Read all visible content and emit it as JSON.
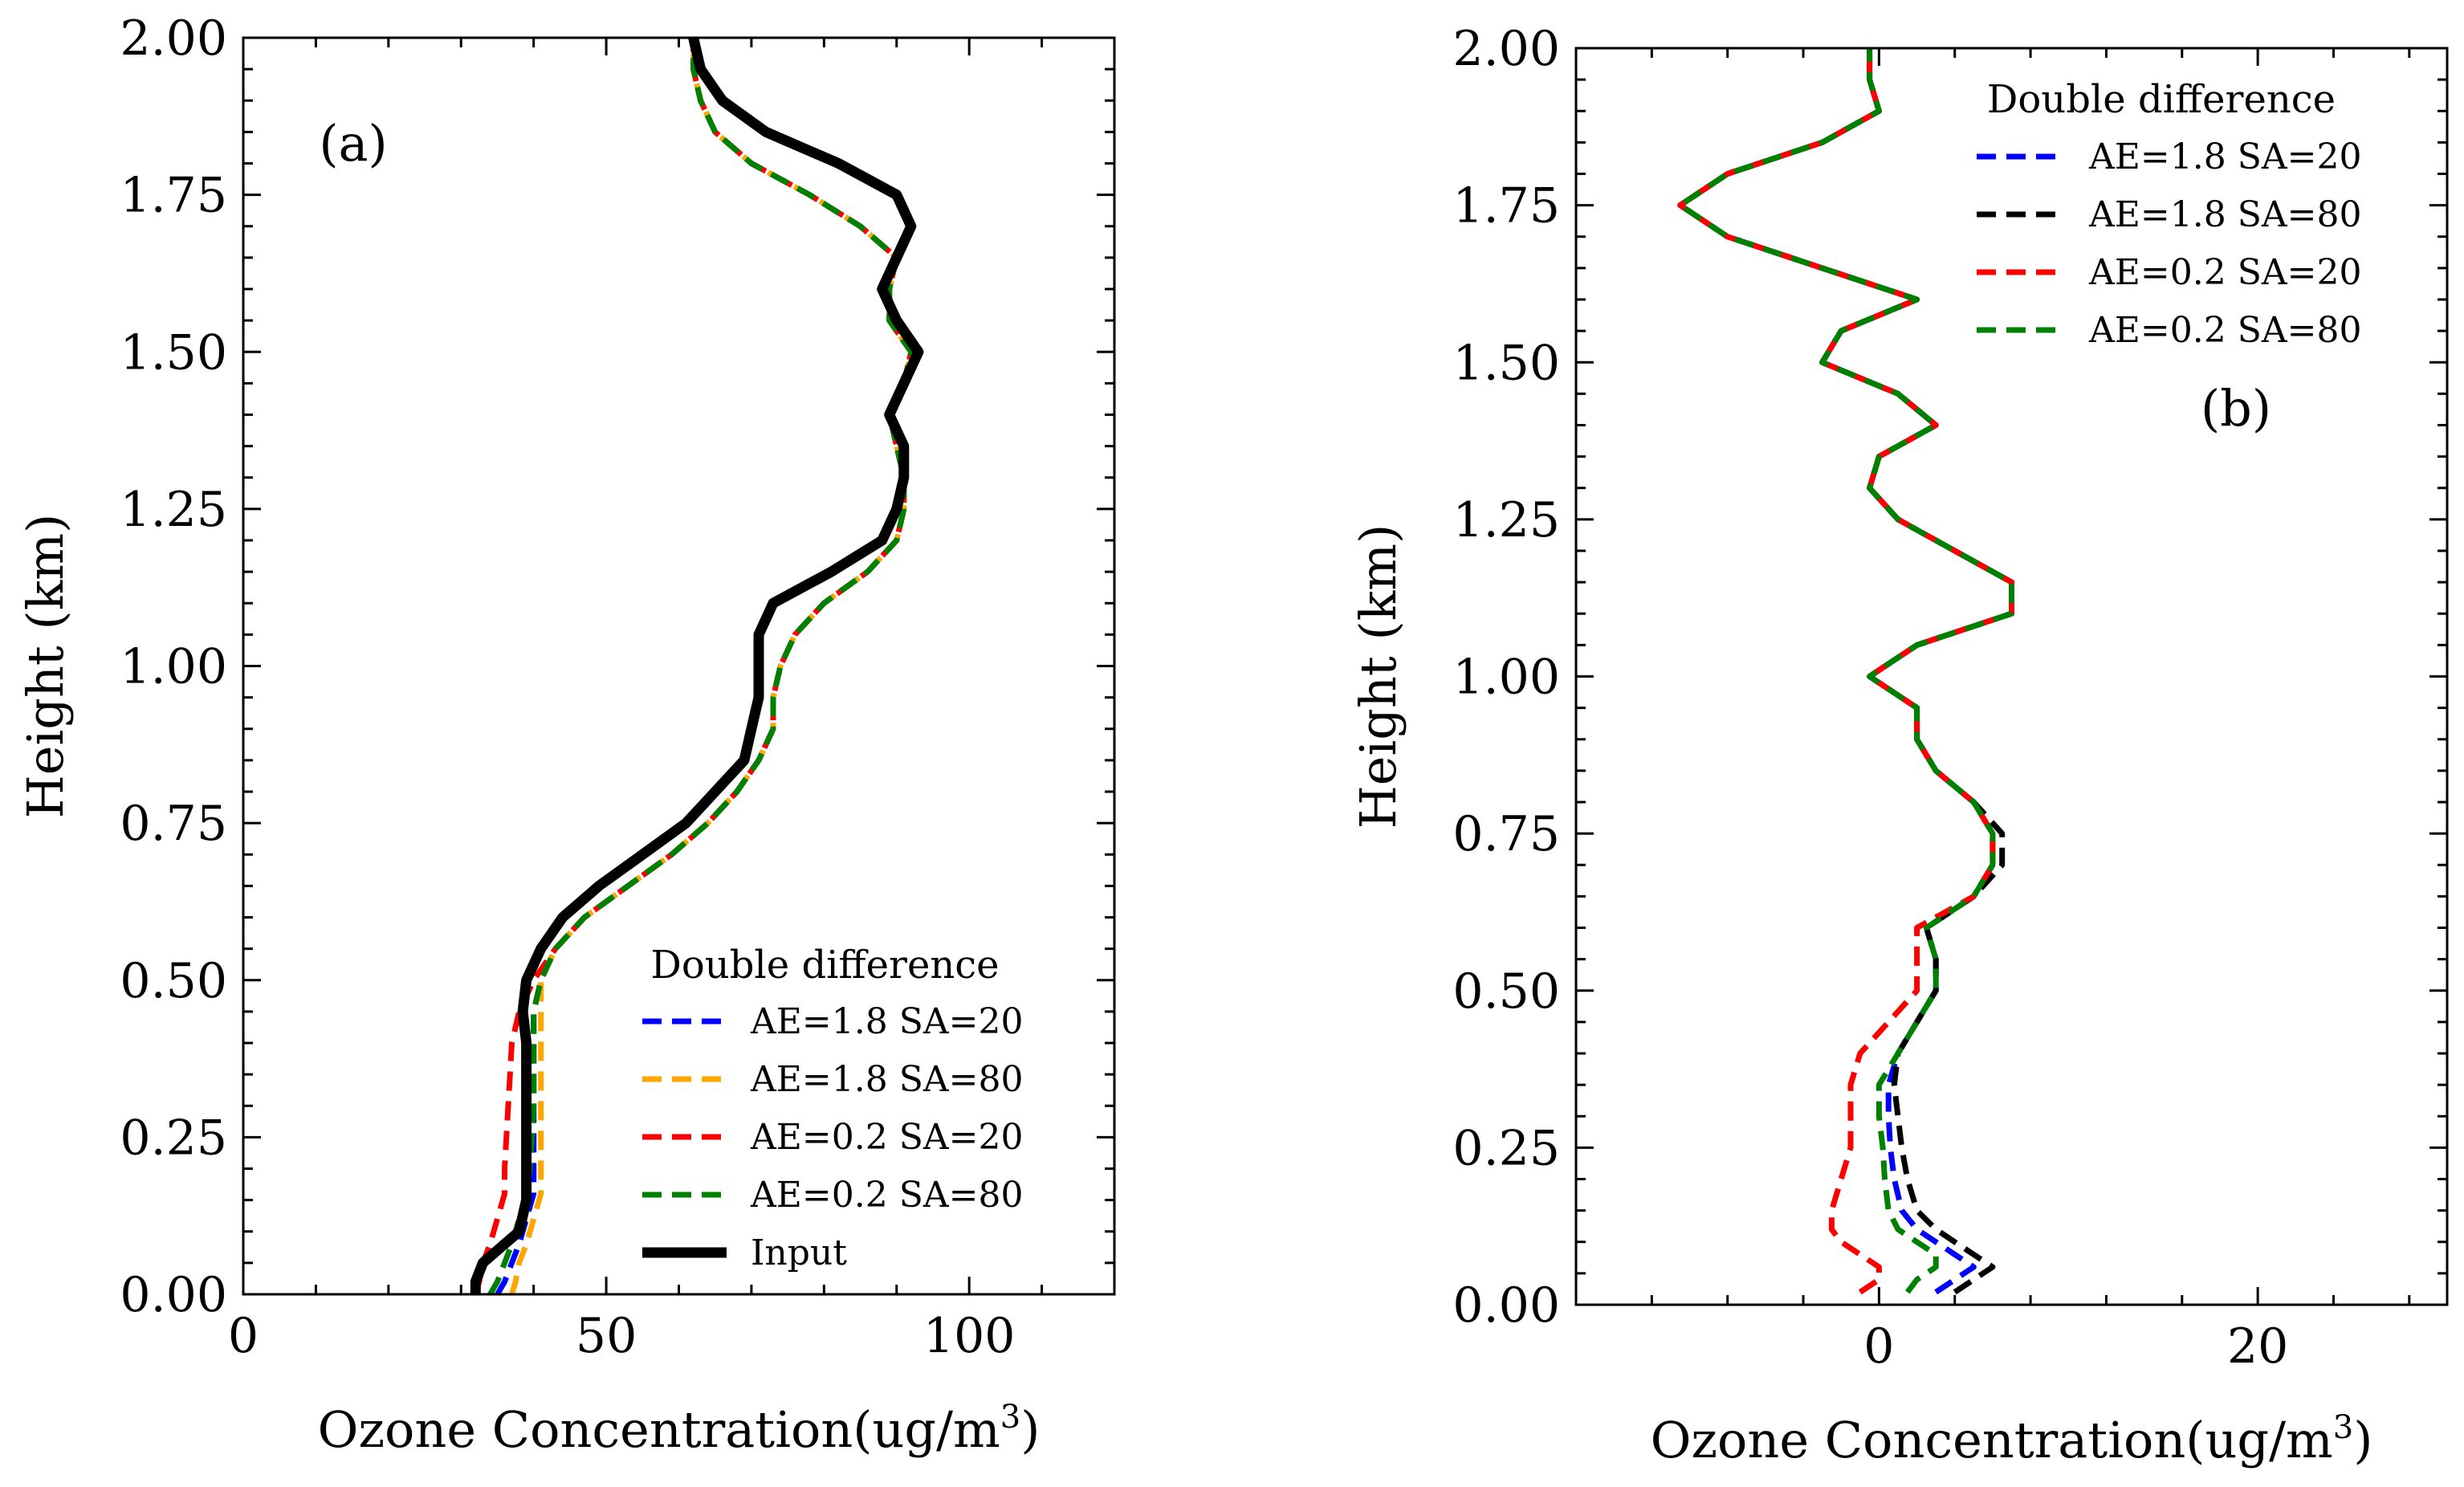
{
  "chart_data": [
    {
      "type": "line",
      "panel_label": "(a)",
      "xlabel": "Ozone Concentration(ug/m",
      "xlabel_sup": "3",
      "xlabel_close": ")",
      "ylabel": "Height (km)",
      "xlim": [
        0,
        120
      ],
      "ylim": [
        0,
        2.0
      ],
      "xticks": [
        0,
        50,
        100
      ],
      "xtick_labels": [
        "0",
        "50",
        "100"
      ],
      "yticks": [
        0,
        0.25,
        0.5,
        0.75,
        1.0,
        1.25,
        1.5,
        1.75,
        2.0
      ],
      "ytick_labels": [
        "0.00",
        "0.25",
        "0.50",
        "0.75",
        "1.00",
        "1.25",
        "1.50",
        "1.75",
        "2.00"
      ],
      "legend_title": "Double difference",
      "legend_position": "lower-right",
      "series": [
        {
          "name": "AE=1.8 SA=20",
          "color": "#0000ff",
          "style": "dashed",
          "y": [
            0,
            0.02,
            0.05,
            0.08,
            0.12,
            0.16,
            0.2,
            0.3,
            0.4,
            0.45,
            0.5,
            0.55,
            0.6,
            0.65,
            0.7,
            0.75,
            0.8,
            0.85,
            0.9,
            0.95,
            1.0,
            1.05,
            1.1,
            1.15,
            1.2,
            1.25,
            1.3,
            1.35,
            1.4,
            1.45,
            1.5,
            1.55,
            1.6,
            1.65,
            1.7,
            1.75,
            1.8,
            1.85,
            1.9,
            1.95,
            2.0
          ],
          "x": [
            35,
            36,
            37,
            38,
            39,
            40,
            40,
            40,
            40,
            40,
            41,
            43,
            47,
            53,
            59,
            64,
            68,
            71,
            73,
            73,
            74,
            76,
            80,
            86,
            90,
            91,
            91,
            90,
            89,
            91,
            92,
            89,
            89,
            90,
            85,
            78,
            70,
            65,
            63,
            62,
            62
          ]
        },
        {
          "name": "AE=1.8 SA=80",
          "color": "#ffa500",
          "style": "dashed",
          "y": [
            0,
            0.02,
            0.05,
            0.08,
            0.12,
            0.16,
            0.2,
            0.3,
            0.4,
            0.45,
            0.5,
            0.55,
            0.6,
            0.65,
            0.7,
            0.75,
            0.8,
            0.85,
            0.9,
            0.95,
            1.0,
            1.05,
            1.1,
            1.15,
            1.2,
            1.25,
            1.3,
            1.35,
            1.4,
            1.45,
            1.5,
            1.55,
            1.6,
            1.65,
            1.7,
            1.75,
            1.8,
            1.85,
            1.9,
            1.95,
            2.0
          ],
          "x": [
            37,
            37.5,
            38,
            39,
            40,
            41,
            41,
            41,
            41,
            41,
            41,
            43,
            47,
            53,
            59,
            64,
            68,
            71,
            73,
            73,
            74,
            76,
            80,
            86,
            90,
            91,
            91,
            90,
            89,
            91,
            92,
            89,
            89,
            90,
            85,
            78,
            70,
            65,
            63,
            62,
            62
          ]
        },
        {
          "name": "AE=0.2 SA=20",
          "color": "#ff0000",
          "style": "dashed",
          "y": [
            0,
            0.02,
            0.05,
            0.08,
            0.12,
            0.16,
            0.2,
            0.3,
            0.4,
            0.45,
            0.5,
            0.55,
            0.6,
            0.65,
            0.7,
            0.75,
            0.8,
            0.85,
            0.9,
            0.95,
            1.0,
            1.05,
            1.1,
            1.15,
            1.2,
            1.25,
            1.3,
            1.35,
            1.4,
            1.45,
            1.5,
            1.55,
            1.6,
            1.65,
            1.7,
            1.75,
            1.8,
            1.85,
            1.9,
            1.95,
            2.0
          ],
          "x": [
            32,
            32.5,
            33,
            34,
            35,
            36,
            36,
            36.5,
            37,
            38,
            40,
            43,
            47,
            53,
            59,
            64,
            68,
            71,
            73,
            73,
            74,
            76,
            80,
            86,
            90,
            91,
            91,
            90,
            89,
            91,
            92,
            89,
            89,
            90,
            85,
            78,
            70,
            65,
            63,
            62,
            62
          ]
        },
        {
          "name": "AE=0.2 SA=80",
          "color": "#008000",
          "style": "dashed",
          "y": [
            0,
            0.02,
            0.05,
            0.08,
            0.12,
            0.16,
            0.2,
            0.3,
            0.4,
            0.45,
            0.5,
            0.55,
            0.6,
            0.65,
            0.7,
            0.75,
            0.8,
            0.85,
            0.9,
            0.95,
            1.0,
            1.05,
            1.1,
            1.15,
            1.2,
            1.25,
            1.3,
            1.35,
            1.4,
            1.45,
            1.5,
            1.55,
            1.6,
            1.65,
            1.7,
            1.75,
            1.8,
            1.85,
            1.9,
            1.95,
            2.0
          ],
          "x": [
            34,
            35,
            36,
            37,
            38,
            39,
            39.5,
            40,
            40,
            40,
            41,
            43,
            47,
            53,
            59,
            64,
            68,
            71,
            73,
            73,
            74,
            76,
            80,
            86,
            90,
            91,
            91,
            90,
            89,
            91,
            92,
            89,
            89,
            90,
            85,
            78,
            70,
            65,
            63,
            62,
            62
          ]
        },
        {
          "name": "Input",
          "color": "#000000",
          "style": "solid",
          "y": [
            0,
            0.02,
            0.05,
            0.08,
            0.1,
            0.15,
            0.2,
            0.3,
            0.4,
            0.45,
            0.5,
            0.55,
            0.6,
            0.65,
            0.7,
            0.75,
            0.8,
            0.85,
            0.9,
            0.95,
            1.0,
            1.05,
            1.1,
            1.15,
            1.2,
            1.25,
            1.3,
            1.35,
            1.4,
            1.45,
            1.5,
            1.55,
            1.6,
            1.65,
            1.7,
            1.75,
            1.8,
            1.85,
            1.9,
            1.95,
            2.0
          ],
          "x": [
            32,
            32,
            33,
            36,
            38,
            39,
            39,
            39,
            39,
            38.5,
            39,
            41,
            44,
            49,
            55,
            61,
            65,
            69,
            70,
            71,
            71,
            71,
            73,
            81,
            88,
            90,
            91,
            91,
            89,
            91,
            93,
            90,
            88,
            90,
            92,
            90,
            82,
            72,
            66,
            63,
            62
          ]
        }
      ]
    },
    {
      "type": "line",
      "panel_label": "(b)",
      "xlabel": "Ozone Concentration(ug/m",
      "xlabel_sup": "3",
      "xlabel_close": ")",
      "ylabel": "Height (km)",
      "xlim": [
        -16,
        30
      ],
      "ylim": [
        0,
        2.0
      ],
      "xticks": [
        0,
        20
      ],
      "xtick_labels": [
        "0",
        "20"
      ],
      "yticks": [
        0,
        0.25,
        0.5,
        0.75,
        1.0,
        1.25,
        1.5,
        1.75,
        2.0
      ],
      "ytick_labels": [
        "0.00",
        "0.25",
        "0.50",
        "0.75",
        "1.00",
        "1.25",
        "1.50",
        "1.75",
        "2.00"
      ],
      "legend_title": "Double difference",
      "legend_position": "top-right",
      "series": [
        {
          "name": "AE=1.8 SA=20",
          "color": "#0000ff",
          "style": "dashed",
          "y": [
            0.02,
            0.04,
            0.06,
            0.08,
            0.1,
            0.12,
            0.15,
            0.2,
            0.25,
            0.3,
            0.35,
            0.4,
            0.45,
            0.5,
            0.55,
            0.6,
            0.65,
            0.7,
            0.75,
            0.8,
            0.85,
            0.9,
            0.95,
            1.0,
            1.05,
            1.1,
            1.15,
            1.2,
            1.25,
            1.3,
            1.35,
            1.4,
            1.45,
            1.5,
            1.55,
            1.6,
            1.65,
            1.7,
            1.75,
            1.8,
            1.85,
            1.9,
            1.95,
            2.0
          ],
          "x": [
            3,
            4,
            5,
            4,
            3,
            2,
            1.2,
            0.8,
            0.6,
            0.5,
            0.5,
            1,
            2,
            3,
            3,
            2.5,
            5,
            6,
            6,
            5,
            3,
            2,
            2,
            -0.5,
            2,
            7,
            7,
            4,
            1,
            -0.5,
            0,
            3,
            1,
            -3,
            -2,
            2,
            -3,
            -8,
            -10.5,
            -8,
            -3,
            0,
            -0.5,
            -0.5
          ]
        },
        {
          "name": "AE=1.8 SA=80",
          "color": "#000000",
          "style": "dashed",
          "y": [
            0.02,
            0.04,
            0.06,
            0.08,
            0.1,
            0.12,
            0.15,
            0.2,
            0.25,
            0.3,
            0.35,
            0.4,
            0.45,
            0.5,
            0.55,
            0.6,
            0.65,
            0.7,
            0.75,
            0.8,
            0.85,
            0.9,
            0.95,
            1.0,
            1.05,
            1.1,
            1.15,
            1.2,
            1.25,
            1.3,
            1.35,
            1.4,
            1.45,
            1.5,
            1.55,
            1.6,
            1.65,
            1.7,
            1.75,
            1.8,
            1.85,
            1.9,
            1.95,
            2.0
          ],
          "x": [
            4,
            5,
            6,
            5,
            4,
            3,
            2,
            1.5,
            1.2,
            1,
            0.8,
            1,
            2,
            3,
            3,
            2.5,
            5,
            6.5,
            6.5,
            5,
            3,
            2,
            2,
            -0.5,
            2,
            7,
            7,
            4,
            1,
            -0.5,
            0,
            3,
            1,
            -3,
            -2,
            2,
            -3,
            -8,
            -10.5,
            -8,
            -3,
            0,
            -0.5,
            -0.5
          ]
        },
        {
          "name": "AE=0.2 SA=20",
          "color": "#ff0000",
          "style": "dashed",
          "y": [
            0.02,
            0.04,
            0.06,
            0.08,
            0.1,
            0.12,
            0.15,
            0.2,
            0.25,
            0.3,
            0.35,
            0.4,
            0.45,
            0.5,
            0.55,
            0.6,
            0.65,
            0.7,
            0.75,
            0.8,
            0.85,
            0.9,
            0.95,
            1.0,
            1.05,
            1.1,
            1.15,
            1.2,
            1.25,
            1.3,
            1.35,
            1.4,
            1.45,
            1.5,
            1.55,
            1.6,
            1.65,
            1.7,
            1.75,
            1.8,
            1.85,
            1.9,
            1.95,
            2.0
          ],
          "x": [
            -1,
            0,
            0,
            -1,
            -2,
            -2.5,
            -2.5,
            -2,
            -1.5,
            -1.5,
            -1.5,
            -1,
            0.5,
            2,
            2,
            2,
            5,
            6,
            6,
            5,
            3,
            2,
            2,
            -0.5,
            2,
            7,
            7,
            4,
            1,
            -0.5,
            0,
            3,
            1,
            -3,
            -2,
            2,
            -3,
            -8,
            -10.5,
            -8,
            -3,
            0,
            -0.5,
            -0.5
          ]
        },
        {
          "name": "AE=0.2 SA=80",
          "color": "#008000",
          "style": "dashed",
          "y": [
            0.02,
            0.04,
            0.06,
            0.08,
            0.1,
            0.12,
            0.15,
            0.2,
            0.25,
            0.3,
            0.35,
            0.4,
            0.45,
            0.5,
            0.55,
            0.6,
            0.65,
            0.7,
            0.75,
            0.8,
            0.85,
            0.9,
            0.95,
            1.0,
            1.05,
            1.1,
            1.15,
            1.2,
            1.25,
            1.3,
            1.35,
            1.4,
            1.45,
            1.5,
            1.55,
            1.6,
            1.65,
            1.7,
            1.75,
            1.8,
            1.85,
            1.9,
            1.95,
            2.0
          ],
          "x": [
            1.5,
            2,
            3,
            3,
            2,
            1,
            0.5,
            0.3,
            0.2,
            0,
            0,
            1,
            2,
            3,
            3,
            2.5,
            5,
            6,
            6,
            5,
            3,
            2,
            2,
            -0.5,
            2,
            7,
            7,
            4,
            1,
            -0.5,
            0,
            3,
            1,
            -3,
            -2,
            2,
            -3,
            -8,
            -10.5,
            -8,
            -3,
            0,
            -0.5,
            -0.5
          ]
        }
      ]
    }
  ]
}
